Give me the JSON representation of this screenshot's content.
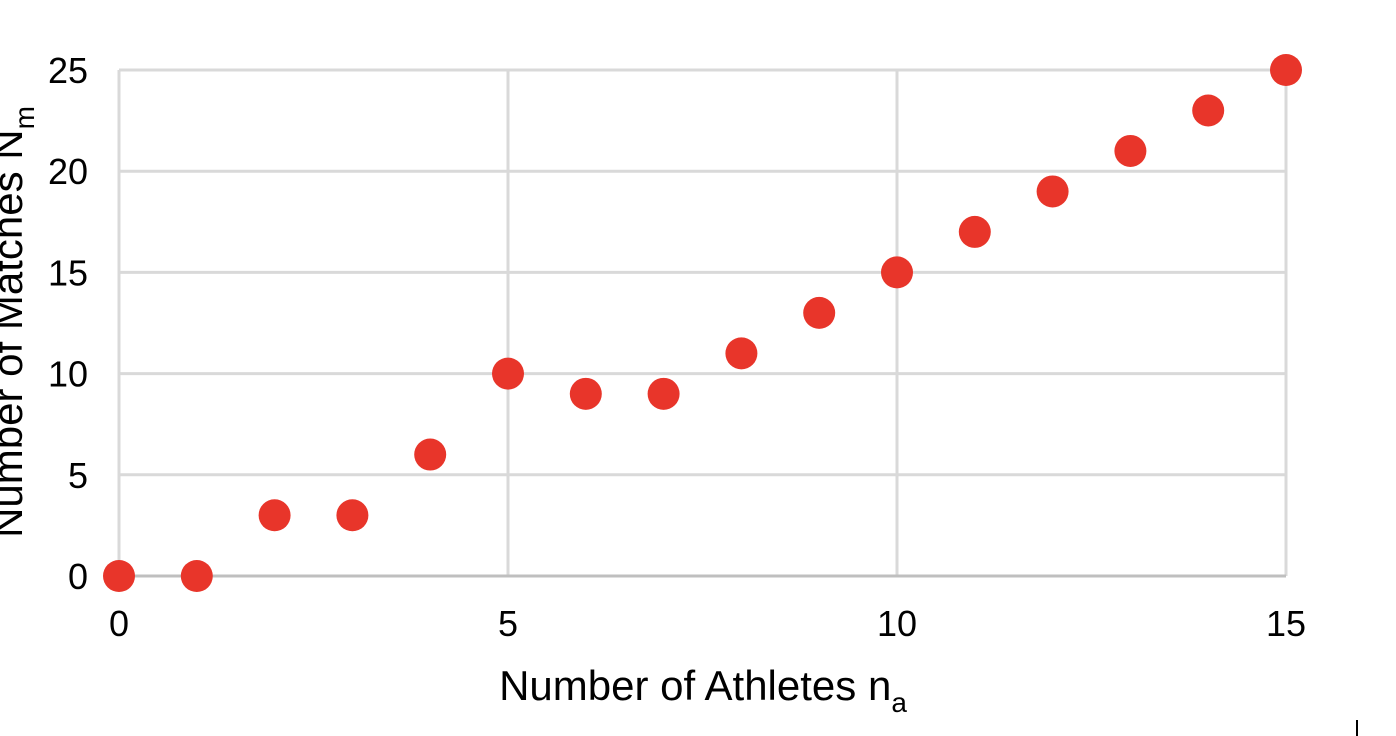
{
  "chart_data": {
    "type": "scatter",
    "title": "",
    "xlabel": {
      "main": "Number of Athletes n",
      "sub": "a"
    },
    "ylabel": {
      "main": "Number of Matches N",
      "sub": "m"
    },
    "xlim": [
      0,
      15
    ],
    "ylim": [
      0,
      25
    ],
    "xticks": [
      0,
      5,
      10,
      15
    ],
    "yticks": [
      0,
      5,
      10,
      15,
      20,
      25
    ],
    "grid": true,
    "legend": "none",
    "series": [
      {
        "color": "#e8352a",
        "points": [
          {
            "x": 0,
            "y": 0
          },
          {
            "x": 1,
            "y": 0
          },
          {
            "x": 2,
            "y": 3
          },
          {
            "x": 3,
            "y": 3
          },
          {
            "x": 4,
            "y": 6
          },
          {
            "x": 5,
            "y": 10
          },
          {
            "x": 6,
            "y": 9
          },
          {
            "x": 7,
            "y": 9
          },
          {
            "x": 8,
            "y": 11
          },
          {
            "x": 9,
            "y": 13
          },
          {
            "x": 10,
            "y": 15
          },
          {
            "x": 11,
            "y": 17
          },
          {
            "x": 12,
            "y": 19
          },
          {
            "x": 13,
            "y": 21
          },
          {
            "x": 14,
            "y": 23
          },
          {
            "x": 15,
            "y": 25
          }
        ]
      }
    ]
  }
}
